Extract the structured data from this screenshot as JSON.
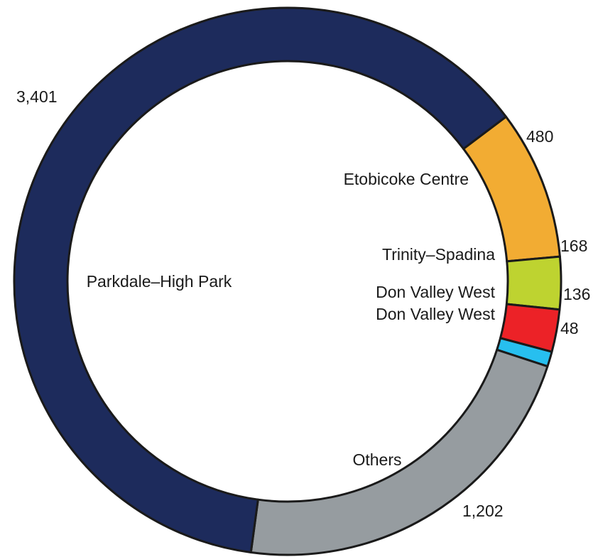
{
  "chart_data": {
    "type": "pie",
    "style": "donut",
    "slices": [
      {
        "label": "Etobicoke Centre",
        "value_label": "480",
        "value": 480,
        "color": "#F2AC33"
      },
      {
        "label": "Trinity–Spadina",
        "value_label": "168",
        "value": 168,
        "color": "#BED330"
      },
      {
        "label": "Don Valley West",
        "value_label": "136",
        "value": 136,
        "color": "#EC2227"
      },
      {
        "label": "Don Valley West",
        "value_label": "48",
        "value": 48,
        "color": "#27BFEF"
      },
      {
        "label": "Others",
        "value_label": "1,202",
        "value": 1202,
        "color": "#969CA0"
      },
      {
        "label": "Parkdale–High Park",
        "value_label": "3,401",
        "value": 3401,
        "color": "#1D2B5C"
      }
    ],
    "slice_border_color": "#1a1a1a"
  }
}
